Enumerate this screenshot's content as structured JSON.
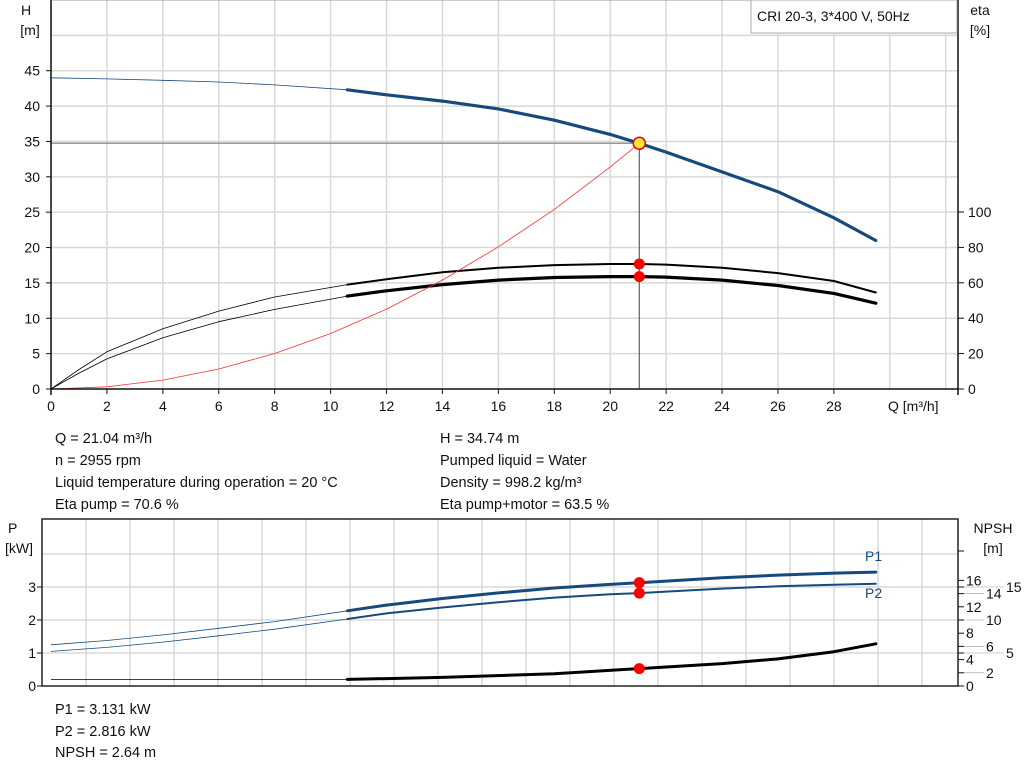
{
  "chart_data": [
    {
      "type": "line",
      "title": "CRI 20-3, 3*400 V, 50Hz",
      "xlabel": "Q [m³/h]",
      "ylabel_left_lines": [
        "H",
        "[m]"
      ],
      "ylabel_right_lines": [
        "eta",
        "[%]"
      ],
      "xlim": [
        0,
        32
      ],
      "ylim_left": [
        0,
        55
      ],
      "ylim_right": [
        0,
        100
      ],
      "grid": true,
      "x_ticks": [
        0,
        2,
        4,
        6,
        8,
        10,
        12,
        14,
        16,
        18,
        20,
        22,
        24,
        26,
        28
      ],
      "y_ticks_left": [
        0,
        5,
        10,
        15,
        20,
        25,
        30,
        35,
        40,
        45
      ],
      "y_ticks_right": [
        0,
        20,
        40,
        60,
        80,
        100
      ],
      "series": [
        {
          "key": "H",
          "axis": "left",
          "color": "#174a7c",
          "thin_until": 10.6,
          "points": [
            [
              0,
              44
            ],
            [
              2,
              43.85
            ],
            [
              4,
              43.65
            ],
            [
              6,
              43.4
            ],
            [
              8,
              43.0
            ],
            [
              10.6,
              42.3
            ],
            [
              12,
              41.6
            ],
            [
              14,
              40.7
            ],
            [
              16,
              39.6
            ],
            [
              18,
              38.0
            ],
            [
              20,
              36.0
            ],
            [
              21.04,
              34.74
            ],
            [
              22,
              33.5
            ],
            [
              24,
              30.7
            ],
            [
              26,
              27.9
            ],
            [
              28,
              24.2
            ],
            [
              29.5,
              21.0
            ]
          ]
        },
        {
          "key": "eta_pump",
          "axis": "right",
          "color": "#000000",
          "thin_until": 10.6,
          "points": [
            [
              0,
              0
            ],
            [
              1,
              11
            ],
            [
              2,
              21
            ],
            [
              4,
              34
            ],
            [
              6,
              44
            ],
            [
              8,
              52
            ],
            [
              10.6,
              59
            ],
            [
              12,
              62
            ],
            [
              14,
              66
            ],
            [
              16,
              68.5
            ],
            [
              18,
              70
            ],
            [
              20,
              70.6
            ],
            [
              21.04,
              70.6
            ],
            [
              22,
              70.3
            ],
            [
              24,
              68.5
            ],
            [
              26,
              65.5
            ],
            [
              28,
              61
            ],
            [
              29.5,
              54.5
            ]
          ]
        },
        {
          "key": "eta_pump_motor",
          "axis": "right",
          "color": "#000000",
          "thin_until": 10.6,
          "points": [
            [
              0,
              0
            ],
            [
              1,
              9
            ],
            [
              2,
              17
            ],
            [
              4,
              29
            ],
            [
              6,
              38
            ],
            [
              8,
              45
            ],
            [
              10.6,
              52.5
            ],
            [
              12,
              55.5
            ],
            [
              14,
              59
            ],
            [
              16,
              61.5
            ],
            [
              18,
              63
            ],
            [
              20,
              63.5
            ],
            [
              21.04,
              63.5
            ],
            [
              22,
              63.2
            ],
            [
              24,
              61.5
            ],
            [
              26,
              58.5
            ],
            [
              28,
              54
            ],
            [
              29.5,
              48.5
            ]
          ]
        },
        {
          "key": "system_curve",
          "axis": "left",
          "color": "#ff3030",
          "thin_until": 99,
          "points": [
            [
              0,
              0
            ],
            [
              2,
              0.31
            ],
            [
              4,
              1.26
            ],
            [
              6,
              2.83
            ],
            [
              8,
              5.02
            ],
            [
              10,
              7.85
            ],
            [
              12,
              11.3
            ],
            [
              14,
              15.4
            ],
            [
              16,
              20.1
            ],
            [
              18,
              25.4
            ],
            [
              20,
              31.4
            ],
            [
              21.04,
              34.74
            ]
          ]
        }
      ],
      "operating_point": {
        "Q": 21.04,
        "H": 34.74,
        "eta_pump": 70.6,
        "eta_pump_motor": 63.5
      }
    },
    {
      "type": "line",
      "xlim": [
        0,
        32
      ],
      "ylabel_left_lines": [
        "P",
        "[kW]"
      ],
      "ylabel_right_lines": [
        "NPSH",
        "[m]"
      ],
      "ylim_left": [
        0,
        5.06
      ],
      "ylim_right": [
        0,
        25.3
      ],
      "grid": true,
      "y_ticks_left": [
        0,
        1,
        2,
        3
      ],
      "y_ticks_right": [
        0,
        2,
        4,
        5,
        6,
        8,
        10,
        12,
        14,
        15,
        16
      ],
      "series": [
        {
          "key": "P1",
          "name": "P1",
          "axis": "left",
          "color": "#174a7c",
          "thin_until": 10.6,
          "points": [
            [
              0,
              1.25
            ],
            [
              2,
              1.38
            ],
            [
              4,
              1.55
            ],
            [
              6,
              1.75
            ],
            [
              8,
              1.95
            ],
            [
              10.6,
              2.28
            ],
            [
              12,
              2.45
            ],
            [
              14,
              2.65
            ],
            [
              16,
              2.82
            ],
            [
              18,
              2.97
            ],
            [
              20,
              3.08
            ],
            [
              21.04,
              3.131
            ],
            [
              22,
              3.18
            ],
            [
              24,
              3.28
            ],
            [
              26,
              3.36
            ],
            [
              28,
              3.42
            ],
            [
              29.5,
              3.45
            ]
          ]
        },
        {
          "key": "P2",
          "name": "P2",
          "axis": "left",
          "color": "#174a7c",
          "thin_until": 10.6,
          "points": [
            [
              0,
              1.05
            ],
            [
              2,
              1.17
            ],
            [
              4,
              1.33
            ],
            [
              6,
              1.52
            ],
            [
              8,
              1.72
            ],
            [
              10.6,
              2.03
            ],
            [
              12,
              2.2
            ],
            [
              14,
              2.38
            ],
            [
              16,
              2.54
            ],
            [
              18,
              2.68
            ],
            [
              20,
              2.78
            ],
            [
              21.04,
              2.816
            ],
            [
              22,
              2.86
            ],
            [
              24,
              2.95
            ],
            [
              26,
              3.02
            ],
            [
              28,
              3.07
            ],
            [
              29.5,
              3.1
            ]
          ]
        },
        {
          "key": "NPSH",
          "axis": "right",
          "color": "#000000",
          "thin_until": 10.6,
          "points": [
            [
              0,
              1.0
            ],
            [
              8,
              1.0
            ],
            [
              10.6,
              1.0
            ],
            [
              14,
              1.3
            ],
            [
              18,
              1.85
            ],
            [
              21.04,
              2.64
            ],
            [
              24,
              3.4
            ],
            [
              26,
              4.1
            ],
            [
              28,
              5.2
            ],
            [
              29.5,
              6.4
            ]
          ]
        }
      ],
      "operating_point": {
        "Q": 21.04,
        "P1": 3.131,
        "P2": 2.816,
        "NPSH": 2.64
      }
    }
  ],
  "info": {
    "q": "Q = 21.04 m³/h",
    "n": "n = 2955 rpm",
    "temp": "Liquid temperature during operation = 20 °C",
    "eta_pump": "Eta pump = 70.6 %",
    "h": "H = 34.74 m",
    "liquid": "Pumped liquid = Water",
    "density": "Density = 998.2 kg/m³",
    "eta_total": "Eta pump+motor = 63.5 %",
    "p1": "P1 = 3.131 kW",
    "p2": "P2 = 2.816 kW",
    "npsh": "NPSH = 2.64 m"
  }
}
